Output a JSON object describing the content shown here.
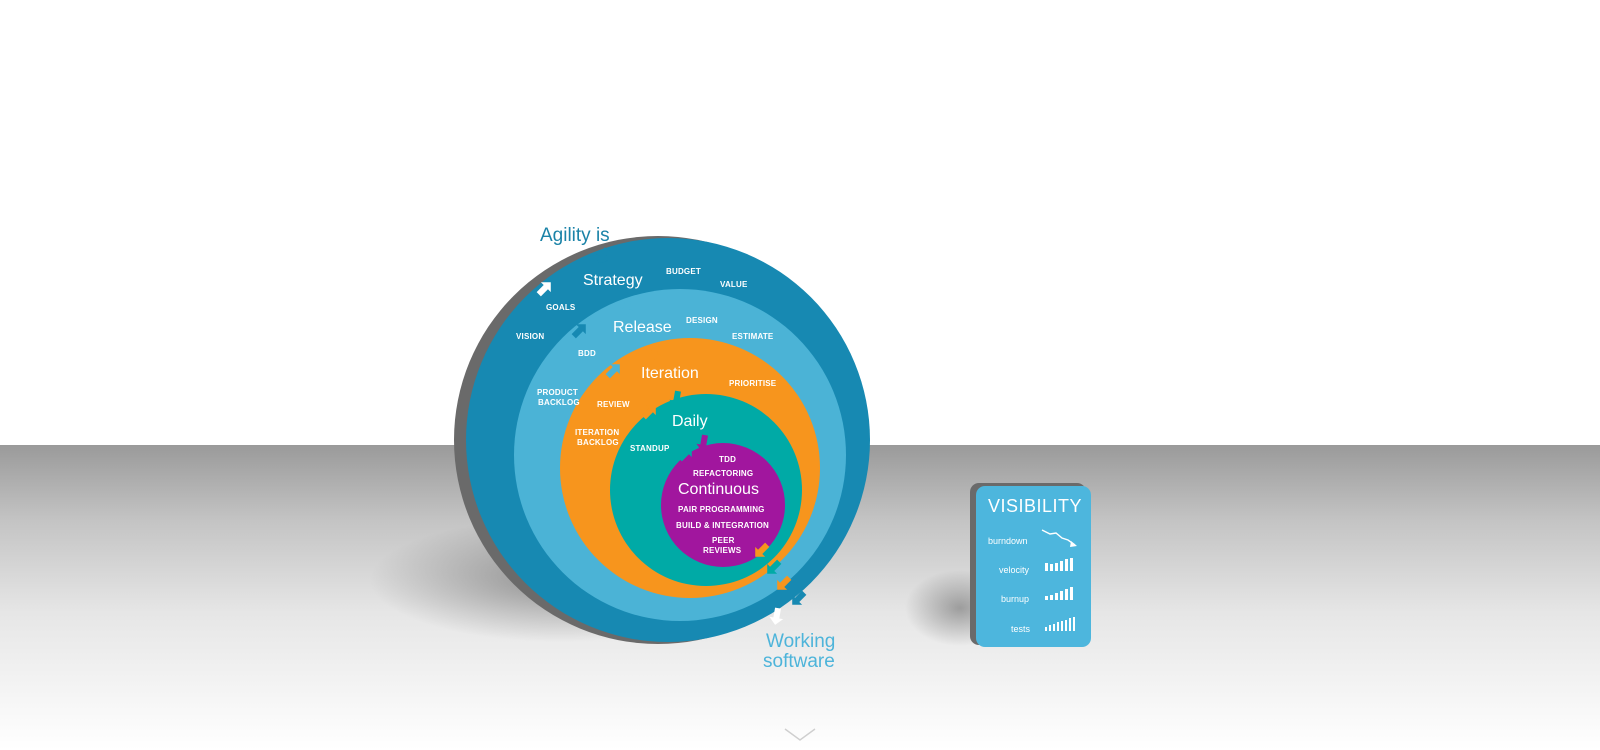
{
  "colors": {
    "strategy": "#1789b2",
    "release": "#4bb3d6",
    "iteration": "#f7951d",
    "daily": "#00aaa6",
    "continuous": "#a1169e",
    "annotation_dark": "#1b83a8",
    "annotation_light": "#4db4da",
    "card": "#4db6dd"
  },
  "diagram": {
    "top_annotation": "Agility is",
    "bottom_annotation_line1": "Working",
    "bottom_annotation_line2": "software",
    "rings": {
      "strategy": {
        "title": "Strategy",
        "items": [
          "BUDGET",
          "VALUE",
          "GOALS",
          "VISION"
        ]
      },
      "release": {
        "title": "Release",
        "items": [
          "DESIGN",
          "ESTIMATE",
          "BDD",
          "PRODUCT",
          "BACKLOG"
        ]
      },
      "iteration": {
        "title": "Iteration",
        "items": [
          "PRIORITISE",
          "REVIEW",
          "ITERATION",
          "BACKLOG"
        ]
      },
      "daily": {
        "title": "Daily",
        "items": [
          "STANDUP"
        ]
      },
      "continuous": {
        "title": "Continuous",
        "items": [
          "TDD",
          "REFACTORING",
          "PAIR PROGRAMMING",
          "BUILD & INTEGRATION",
          "PEER",
          "REVIEWS"
        ]
      }
    }
  },
  "visibility": {
    "title": "VISIBILITY",
    "metrics": [
      {
        "label": "burndown",
        "icon": "burndown-chart-icon"
      },
      {
        "label": "velocity",
        "icon": "velocity-bars-icon"
      },
      {
        "label": "burnup",
        "icon": "burnup-bars-icon"
      },
      {
        "label": "tests",
        "icon": "tests-bars-icon"
      }
    ]
  },
  "scroll": {
    "icon": "chevron-down-icon"
  }
}
